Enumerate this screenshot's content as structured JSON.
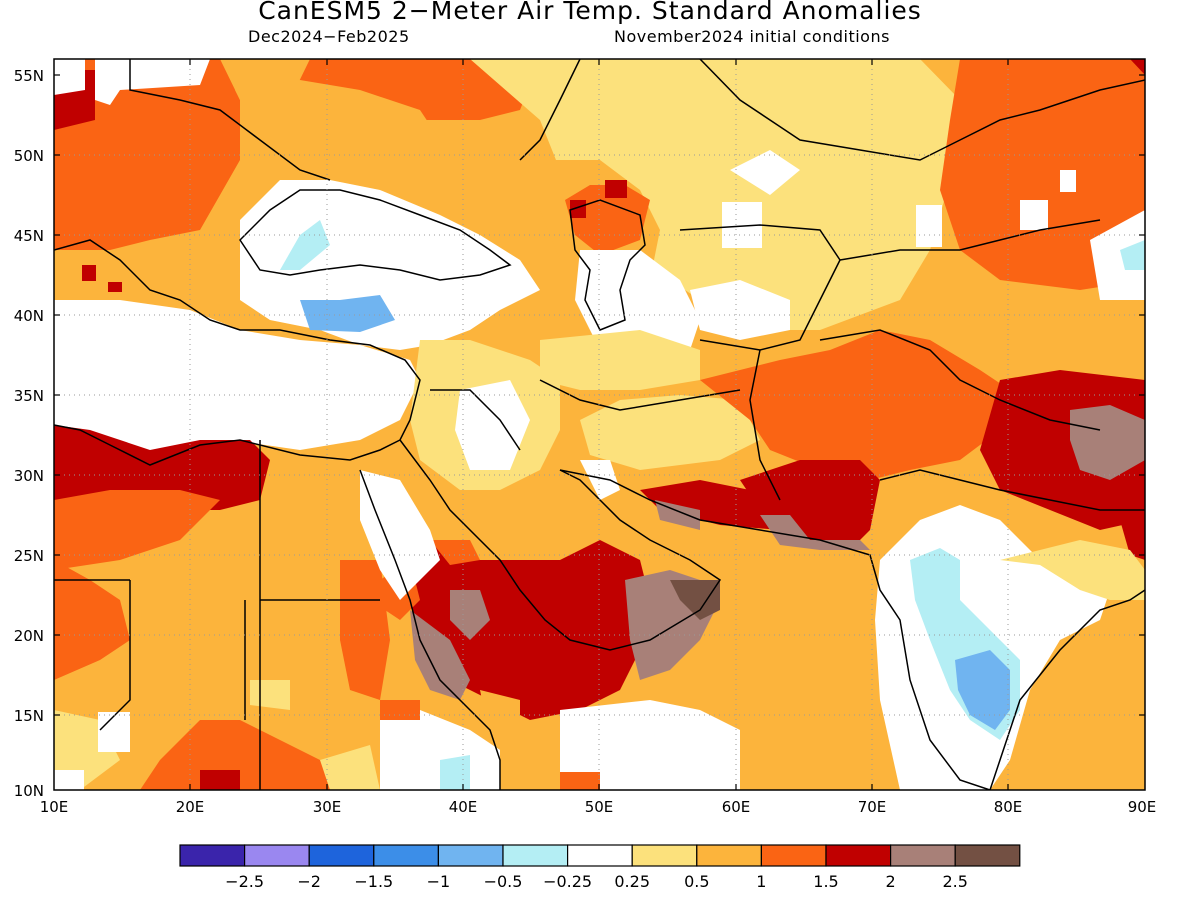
{
  "header": {
    "title": "CanESM5 2−Meter Air Temp. Standard Anomalies",
    "period": "Dec2024−Feb2025",
    "init": "November2024 initial conditions"
  },
  "axes": {
    "lat_labels": [
      "55N",
      "50N",
      "45N",
      "40N",
      "35N",
      "30N",
      "25N",
      "20N",
      "15N",
      "10N"
    ],
    "lon_labels": [
      "10E",
      "20E",
      "30E",
      "40E",
      "50E",
      "60E",
      "70E",
      "80E",
      "90E"
    ]
  },
  "colorbar": {
    "colors": [
      "#3a24ab",
      "#9a87f0",
      "#1e64dc",
      "#3c8ee8",
      "#70b4f0",
      "#b4eef4",
      "#ffffff",
      "#fce17c",
      "#fcb43c",
      "#fa6414",
      "#c00000",
      "#a88078",
      "#735043"
    ],
    "labels": [
      "−2.5",
      "−2",
      "−1.5",
      "−1",
      "−0.5",
      "−0.25",
      "0.25",
      "0.5",
      "1",
      "1.5",
      "2",
      "2.5"
    ]
  }
}
